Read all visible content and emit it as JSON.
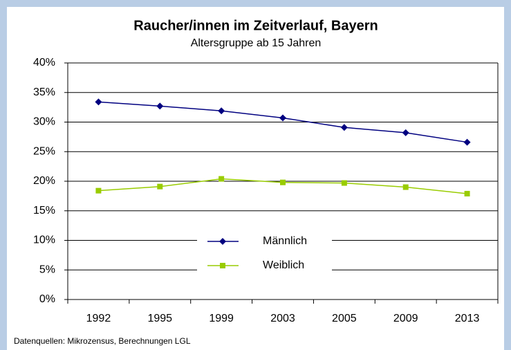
{
  "chart_data": {
    "type": "line",
    "title": "Raucher/innen im Zeitverlauf, Bayern",
    "subtitle": "Altersgruppe ab 15 Jahren",
    "source": "Datenquellen: Mikrozensus, Berechnungen LGL",
    "categories": [
      "1992",
      "1995",
      "1999",
      "2003",
      "2005",
      "2009",
      "2013"
    ],
    "series": [
      {
        "name": "Männlich",
        "color": "#000080",
        "marker": "diamond",
        "values": [
          33.4,
          32.7,
          31.9,
          30.7,
          29.1,
          28.2,
          26.6
        ]
      },
      {
        "name": "Weiblich",
        "color": "#99cc00",
        "marker": "square",
        "values": [
          18.4,
          19.1,
          20.4,
          19.8,
          19.7,
          19.0,
          17.9
        ]
      }
    ],
    "ylim": [
      0,
      40
    ],
    "yticks": [
      {
        "value": 0,
        "label": "0%"
      },
      {
        "value": 5,
        "label": "5%"
      },
      {
        "value": 10,
        "label": "10%"
      },
      {
        "value": 15,
        "label": "15%"
      },
      {
        "value": 20,
        "label": "20%"
      },
      {
        "value": 25,
        "label": "25%"
      },
      {
        "value": 30,
        "label": "30%"
      },
      {
        "value": 35,
        "label": "35%"
      },
      {
        "value": 40,
        "label": "40%"
      }
    ],
    "grid": true,
    "legend": "center"
  }
}
